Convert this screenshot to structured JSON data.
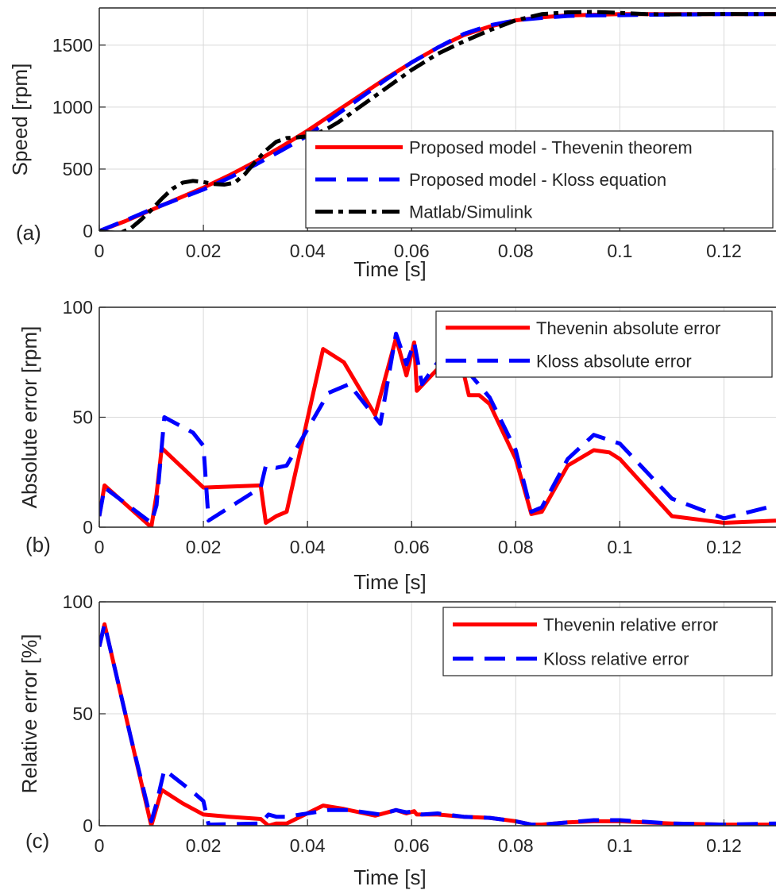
{
  "colors": {
    "thevenin": "#ff0000",
    "kloss": "#0000ff",
    "matlab": "#000000",
    "grid": "#d9d9d9",
    "axis": "#262626"
  },
  "chart_data": [
    {
      "type": "line",
      "panel_label": "(a)",
      "xlabel": "Time [s]",
      "ylabel": "Speed [rpm]",
      "xlim": [
        0,
        0.13
      ],
      "ylim": [
        0,
        1800
      ],
      "xticks": [
        0,
        0.02,
        0.04,
        0.06,
        0.08,
        0.1,
        0.12
      ],
      "xtick_labels": [
        "0",
        "0.02",
        "0.04",
        "0.06",
        "0.08",
        "0.1",
        "0.12"
      ],
      "yticks": [
        0,
        500,
        1000,
        1500
      ],
      "ytick_labels": [
        "0",
        "500",
        "1000",
        "1500"
      ],
      "grid": true,
      "legend_position": "bottom-right",
      "series": [
        {
          "name": "Proposed model - Thevenin theorem",
          "style": "solid",
          "color": "#ff0000",
          "x": [
            0,
            0.005,
            0.01,
            0.015,
            0.02,
            0.025,
            0.03,
            0.035,
            0.04,
            0.045,
            0.05,
            0.055,
            0.06,
            0.065,
            0.07,
            0.075,
            0.08,
            0.085,
            0.09,
            0.095,
            0.1,
            0.105,
            0.11,
            0.115,
            0.12,
            0.125,
            0.13
          ],
          "y": [
            0,
            80,
            170,
            260,
            350,
            450,
            560,
            680,
            810,
            950,
            1090,
            1230,
            1360,
            1480,
            1580,
            1650,
            1700,
            1725,
            1740,
            1745,
            1750,
            1750,
            1750,
            1750,
            1750,
            1750,
            1750
          ]
        },
        {
          "name": "Proposed model - Kloss equation",
          "style": "dashed",
          "color": "#0000ff",
          "x": [
            0,
            0.005,
            0.01,
            0.015,
            0.02,
            0.025,
            0.03,
            0.035,
            0.04,
            0.045,
            0.05,
            0.055,
            0.06,
            0.065,
            0.07,
            0.075,
            0.08,
            0.085,
            0.09,
            0.095,
            0.1,
            0.105,
            0.11,
            0.115,
            0.12,
            0.125,
            0.13
          ],
          "y": [
            0,
            85,
            175,
            255,
            335,
            430,
            535,
            650,
            770,
            920,
            1070,
            1220,
            1360,
            1480,
            1590,
            1660,
            1700,
            1720,
            1735,
            1740,
            1742,
            1745,
            1747,
            1748,
            1750,
            1750,
            1750
          ]
        },
        {
          "name": "Matlab/Simulink",
          "style": "dashdot",
          "color": "#000000",
          "x": [
            0,
            0.002,
            0.004,
            0.006,
            0.008,
            0.01,
            0.012,
            0.014,
            0.016,
            0.018,
            0.02,
            0.022,
            0.024,
            0.026,
            0.028,
            0.03,
            0.032,
            0.034,
            0.036,
            0.038,
            0.04,
            0.042,
            0.044,
            0.046,
            0.048,
            0.05,
            0.055,
            0.06,
            0.065,
            0.07,
            0.075,
            0.08,
            0.085,
            0.09,
            0.095,
            0.1,
            0.105,
            0.11,
            0.115,
            0.12,
            0.125,
            0.13
          ],
          "y": [
            0,
            -10,
            -15,
            20,
            90,
            170,
            260,
            340,
            390,
            405,
            395,
            380,
            375,
            390,
            460,
            560,
            650,
            720,
            750,
            755,
            765,
            790,
            830,
            880,
            940,
            1000,
            1150,
            1300,
            1430,
            1530,
            1620,
            1700,
            1750,
            1765,
            1768,
            1760,
            1750,
            1748,
            1750,
            1752,
            1750,
            1750
          ]
        }
      ]
    },
    {
      "type": "line",
      "panel_label": "(b)",
      "xlabel": "Time [s]",
      "ylabel": "Absolute error [rpm]",
      "xlim": [
        0,
        0.13
      ],
      "ylim": [
        0,
        100
      ],
      "xticks": [
        0,
        0.02,
        0.04,
        0.06,
        0.08,
        0.1,
        0.12
      ],
      "xtick_labels": [
        "0",
        "0.02",
        "0.04",
        "0.06",
        "0.08",
        "0.1",
        "0.12"
      ],
      "yticks": [
        0,
        50,
        100
      ],
      "ytick_labels": [
        "0",
        "50",
        "100"
      ],
      "grid": true,
      "legend_position": "top-right",
      "series": [
        {
          "name": "Thevenin absolute error",
          "style": "solid",
          "color": "#ff0000",
          "x": [
            0,
            0.001,
            0.01,
            0.011,
            0.012,
            0.02,
            0.031,
            0.032,
            0.034,
            0.036,
            0.043,
            0.047,
            0.053,
            0.057,
            0.059,
            0.0605,
            0.061,
            0.065,
            0.07,
            0.071,
            0.073,
            0.075,
            0.08,
            0.083,
            0.085,
            0.09,
            0.095,
            0.098,
            0.1,
            0.11,
            0.12,
            0.13
          ],
          "y": [
            5,
            19,
            0,
            15,
            36,
            18,
            19,
            2,
            5,
            7,
            81,
            75,
            51,
            86,
            69,
            84,
            62,
            72,
            70,
            60,
            60,
            56,
            31,
            6,
            7,
            28,
            35,
            34,
            31,
            5,
            2,
            3
          ]
        },
        {
          "name": "Kloss absolute error",
          "style": "dashed",
          "color": "#0000ff",
          "x": [
            0,
            0.001,
            0.01,
            0.011,
            0.0125,
            0.018,
            0.02,
            0.021,
            0.031,
            0.032,
            0.034,
            0.036,
            0.044,
            0.048,
            0.054,
            0.057,
            0.059,
            0.0605,
            0.062,
            0.065,
            0.07,
            0.075,
            0.08,
            0.083,
            0.085,
            0.09,
            0.095,
            0.1,
            0.11,
            0.12,
            0.13
          ],
          "y": [
            5,
            18,
            2,
            10,
            50,
            43,
            37,
            3,
            18,
            28,
            27,
            28,
            61,
            65,
            47,
            88,
            74,
            84,
            65,
            75,
            73,
            59,
            35,
            7,
            9,
            31,
            42,
            38,
            13,
            4,
            10
          ]
        }
      ]
    },
    {
      "type": "line",
      "panel_label": "(c)",
      "xlabel": "Time [s]",
      "ylabel": "Relative error [%]",
      "xlim": [
        0,
        0.13
      ],
      "ylim": [
        0,
        100
      ],
      "xticks": [
        0,
        0.02,
        0.04,
        0.06,
        0.08,
        0.1,
        0.12
      ],
      "xtick_labels": [
        "0",
        "0.02",
        "0.04",
        "0.06",
        "0.08",
        "0.1",
        "0.12"
      ],
      "yticks": [
        0,
        50,
        100
      ],
      "ytick_labels": [
        "0",
        "50",
        "100"
      ],
      "grid": true,
      "legend_position": "top-right",
      "series": [
        {
          "name": "Thevenin relative error",
          "style": "solid",
          "color": "#ff0000",
          "x": [
            0,
            0.001,
            0.003,
            0.006,
            0.01,
            0.011,
            0.012,
            0.016,
            0.02,
            0.025,
            0.031,
            0.0325,
            0.034,
            0.036,
            0.043,
            0.047,
            0.053,
            0.057,
            0.059,
            0.0605,
            0.061,
            0.065,
            0.07,
            0.075,
            0.08,
            0.083,
            0.085,
            0.09,
            0.095,
            0.1,
            0.11,
            0.12,
            0.13
          ],
          "y": [
            80,
            90,
            70,
            40,
            0,
            8,
            16,
            10,
            5,
            4,
            3,
            0,
            1,
            1,
            9,
            7.5,
            4.5,
            7,
            5.5,
            6.5,
            5,
            5,
            4,
            3.5,
            2,
            0.5,
            0.5,
            1.5,
            2,
            2,
            1,
            0.5,
            0.5
          ]
        },
        {
          "name": "Kloss relative error",
          "style": "dashed",
          "color": "#0000ff",
          "x": [
            0,
            0.001,
            0.003,
            0.006,
            0.01,
            0.011,
            0.0125,
            0.018,
            0.02,
            0.021,
            0.031,
            0.0325,
            0.034,
            0.036,
            0.044,
            0.048,
            0.054,
            0.057,
            0.059,
            0.0605,
            0.062,
            0.065,
            0.07,
            0.075,
            0.08,
            0.083,
            0.085,
            0.09,
            0.095,
            0.1,
            0.11,
            0.12,
            0.13
          ],
          "y": [
            80,
            90,
            70,
            40,
            2,
            10,
            25,
            15,
            11,
            0.5,
            1,
            5,
            4,
            4,
            7,
            7,
            5,
            7,
            6,
            6.5,
            5,
            5.5,
            4,
            3.5,
            2,
            0.5,
            0.5,
            1.5,
            2.5,
            2.5,
            1,
            0.5,
            1
          ]
        }
      ]
    }
  ]
}
